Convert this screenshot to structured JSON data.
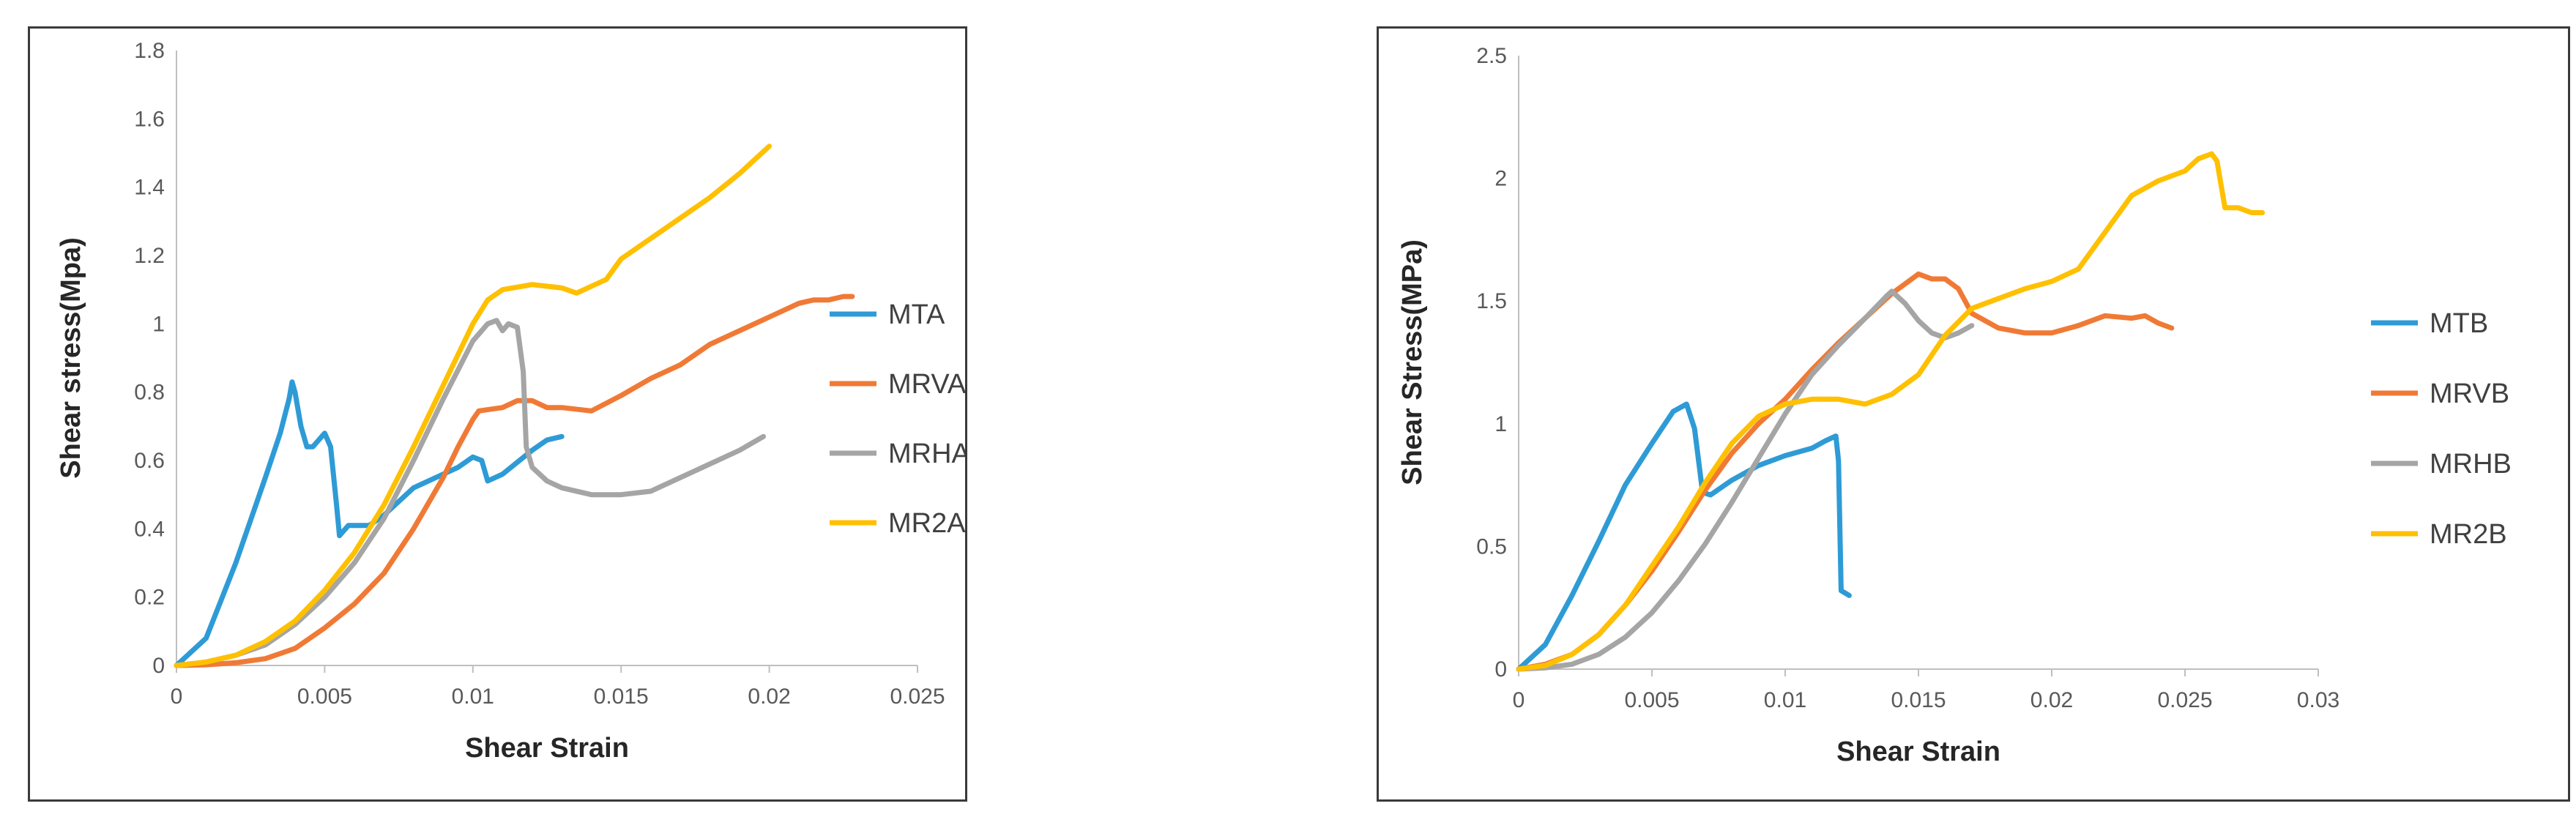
{
  "chart_data": [
    {
      "type": "line",
      "title": "",
      "xlabel": "Shear Strain",
      "ylabel": "Shear stress(Mpa)",
      "xlim": [
        0,
        0.025
      ],
      "ylim": [
        0,
        1.8
      ],
      "xticks": [
        0,
        0.005,
        0.01,
        0.015,
        0.02,
        0.025
      ],
      "xtick_labels": [
        "0",
        "0.005",
        "0.01",
        "0.015",
        "0.02",
        "0.025"
      ],
      "yticks": [
        0,
        0.2,
        0.4,
        0.6,
        0.8,
        1,
        1.2,
        1.4,
        1.6,
        1.8
      ],
      "ytick_labels": [
        "0",
        "0.2",
        "0.4",
        "0.6",
        "0.8",
        "1",
        "1.2",
        "1.4",
        "1.6",
        "1.8"
      ],
      "grid": false,
      "legend_position": "right",
      "series": [
        {
          "name": "MTA",
          "color": "#2E9BD6",
          "points": [
            [
              0,
              0
            ],
            [
              0.001,
              0.08
            ],
            [
              0.002,
              0.3
            ],
            [
              0.003,
              0.55
            ],
            [
              0.0035,
              0.68
            ],
            [
              0.0038,
              0.78
            ],
            [
              0.0039,
              0.83
            ],
            [
              0.004,
              0.8
            ],
            [
              0.0042,
              0.7
            ],
            [
              0.0044,
              0.64
            ],
            [
              0.0046,
              0.64
            ],
            [
              0.0048,
              0.66
            ],
            [
              0.005,
              0.68
            ],
            [
              0.0052,
              0.64
            ],
            [
              0.0054,
              0.47
            ],
            [
              0.0055,
              0.38
            ],
            [
              0.0058,
              0.41
            ],
            [
              0.0065,
              0.41
            ],
            [
              0.007,
              0.44
            ],
            [
              0.008,
              0.52
            ],
            [
              0.009,
              0.56
            ],
            [
              0.0095,
              0.58
            ],
            [
              0.01,
              0.61
            ],
            [
              0.0103,
              0.6
            ],
            [
              0.0105,
              0.54
            ],
            [
              0.011,
              0.56
            ],
            [
              0.012,
              0.63
            ],
            [
              0.0125,
              0.66
            ],
            [
              0.013,
              0.67
            ]
          ]
        },
        {
          "name": "MRVA",
          "color": "#F07A35",
          "points": [
            [
              0,
              0
            ],
            [
              0.001,
              0.002
            ],
            [
              0.002,
              0.008
            ],
            [
              0.003,
              0.02
            ],
            [
              0.004,
              0.05
            ],
            [
              0.005,
              0.11
            ],
            [
              0.006,
              0.18
            ],
            [
              0.007,
              0.27
            ],
            [
              0.008,
              0.4
            ],
            [
              0.009,
              0.55
            ],
            [
              0.0095,
              0.64
            ],
            [
              0.01,
              0.72
            ],
            [
              0.0102,
              0.745
            ],
            [
              0.011,
              0.755
            ],
            [
              0.0115,
              0.775
            ],
            [
              0.012,
              0.775
            ],
            [
              0.0125,
              0.755
            ],
            [
              0.013,
              0.755
            ],
            [
              0.014,
              0.745
            ],
            [
              0.015,
              0.79
            ],
            [
              0.016,
              0.84
            ],
            [
              0.017,
              0.88
            ],
            [
              0.018,
              0.94
            ],
            [
              0.019,
              0.98
            ],
            [
              0.02,
              1.02
            ],
            [
              0.021,
              1.06
            ],
            [
              0.0215,
              1.07
            ],
            [
              0.022,
              1.07
            ],
            [
              0.0225,
              1.08
            ],
            [
              0.0228,
              1.08
            ]
          ]
        },
        {
          "name": "MRHA",
          "color": "#A5A5A5",
          "points": [
            [
              0,
              0
            ],
            [
              0.001,
              0.01
            ],
            [
              0.002,
              0.03
            ],
            [
              0.003,
              0.06
            ],
            [
              0.004,
              0.12
            ],
            [
              0.005,
              0.2
            ],
            [
              0.006,
              0.3
            ],
            [
              0.007,
              0.43
            ],
            [
              0.008,
              0.6
            ],
            [
              0.009,
              0.78
            ],
            [
              0.01,
              0.95
            ],
            [
              0.0105,
              1.0
            ],
            [
              0.0108,
              1.01
            ],
            [
              0.011,
              0.98
            ],
            [
              0.0112,
              1.0
            ],
            [
              0.0115,
              0.99
            ],
            [
              0.0117,
              0.86
            ],
            [
              0.0118,
              0.64
            ],
            [
              0.012,
              0.58
            ],
            [
              0.0125,
              0.54
            ],
            [
              0.013,
              0.52
            ],
            [
              0.014,
              0.5
            ],
            [
              0.015,
              0.5
            ],
            [
              0.016,
              0.51
            ],
            [
              0.017,
              0.55
            ],
            [
              0.018,
              0.59
            ],
            [
              0.019,
              0.63
            ],
            [
              0.0198,
              0.67
            ]
          ]
        },
        {
          "name": "MR2A",
          "color": "#FFC000",
          "points": [
            [
              0,
              0
            ],
            [
              0.001,
              0.01
            ],
            [
              0.002,
              0.03
            ],
            [
              0.003,
              0.07
            ],
            [
              0.004,
              0.13
            ],
            [
              0.005,
              0.22
            ],
            [
              0.006,
              0.33
            ],
            [
              0.007,
              0.47
            ],
            [
              0.008,
              0.64
            ],
            [
              0.009,
              0.82
            ],
            [
              0.01,
              1.0
            ],
            [
              0.0105,
              1.07
            ],
            [
              0.011,
              1.1
            ],
            [
              0.012,
              1.115
            ],
            [
              0.013,
              1.105
            ],
            [
              0.0135,
              1.09
            ],
            [
              0.014,
              1.11
            ],
            [
              0.0145,
              1.13
            ],
            [
              0.015,
              1.19
            ],
            [
              0.016,
              1.25
            ],
            [
              0.017,
              1.31
            ],
            [
              0.018,
              1.37
            ],
            [
              0.019,
              1.44
            ],
            [
              0.02,
              1.52
            ]
          ]
        }
      ]
    },
    {
      "type": "line",
      "title": "",
      "xlabel": "Shear Strain",
      "ylabel": "Shear Stress(MPa)",
      "xlim": [
        0,
        0.03
      ],
      "ylim": [
        0,
        2.5
      ],
      "xticks": [
        0,
        0.005,
        0.01,
        0.015,
        0.02,
        0.025,
        0.03
      ],
      "xtick_labels": [
        "0",
        "0.005",
        "0.01",
        "0.015",
        "0.02",
        "0.025",
        "0.03"
      ],
      "yticks": [
        0,
        0.5,
        1,
        1.5,
        2,
        2.5
      ],
      "ytick_labels": [
        "0",
        "0.5",
        "1",
        "1.5",
        "2",
        "2.5"
      ],
      "grid": false,
      "legend_position": "right",
      "series": [
        {
          "name": "MTB",
          "color": "#2E9BD6",
          "points": [
            [
              0,
              0
            ],
            [
              0.001,
              0.1
            ],
            [
              0.002,
              0.3
            ],
            [
              0.003,
              0.52
            ],
            [
              0.004,
              0.75
            ],
            [
              0.005,
              0.92
            ],
            [
              0.0058,
              1.05
            ],
            [
              0.0063,
              1.08
            ],
            [
              0.0066,
              0.98
            ],
            [
              0.0069,
              0.72
            ],
            [
              0.0072,
              0.71
            ],
            [
              0.008,
              0.77
            ],
            [
              0.009,
              0.83
            ],
            [
              0.01,
              0.87
            ],
            [
              0.011,
              0.9
            ],
            [
              0.0115,
              0.93
            ],
            [
              0.0119,
              0.95
            ],
            [
              0.012,
              0.85
            ],
            [
              0.0121,
              0.32
            ],
            [
              0.0124,
              0.3
            ]
          ]
        },
        {
          "name": "MRVB",
          "color": "#F07A35",
          "points": [
            [
              0,
              0
            ],
            [
              0.001,
              0.02
            ],
            [
              0.002,
              0.06
            ],
            [
              0.003,
              0.14
            ],
            [
              0.004,
              0.26
            ],
            [
              0.005,
              0.4
            ],
            [
              0.006,
              0.56
            ],
            [
              0.007,
              0.73
            ],
            [
              0.008,
              0.88
            ],
            [
              0.009,
              1.0
            ],
            [
              0.01,
              1.1
            ],
            [
              0.011,
              1.22
            ],
            [
              0.012,
              1.33
            ],
            [
              0.013,
              1.43
            ],
            [
              0.014,
              1.53
            ],
            [
              0.0145,
              1.57
            ],
            [
              0.015,
              1.61
            ],
            [
              0.0155,
              1.59
            ],
            [
              0.016,
              1.59
            ],
            [
              0.0165,
              1.55
            ],
            [
              0.017,
              1.45
            ],
            [
              0.018,
              1.39
            ],
            [
              0.019,
              1.37
            ],
            [
              0.02,
              1.37
            ],
            [
              0.021,
              1.4
            ],
            [
              0.022,
              1.44
            ],
            [
              0.023,
              1.43
            ],
            [
              0.0235,
              1.44
            ],
            [
              0.024,
              1.41
            ],
            [
              0.0245,
              1.39
            ]
          ]
        },
        {
          "name": "MRHB",
          "color": "#A5A5A5",
          "points": [
            [
              0,
              0
            ],
            [
              0.001,
              0.005
            ],
            [
              0.002,
              0.02
            ],
            [
              0.003,
              0.06
            ],
            [
              0.004,
              0.13
            ],
            [
              0.005,
              0.23
            ],
            [
              0.006,
              0.36
            ],
            [
              0.007,
              0.51
            ],
            [
              0.008,
              0.68
            ],
            [
              0.009,
              0.86
            ],
            [
              0.01,
              1.04
            ],
            [
              0.011,
              1.2
            ],
            [
              0.012,
              1.32
            ],
            [
              0.013,
              1.43
            ],
            [
              0.0138,
              1.52
            ],
            [
              0.014,
              1.54
            ],
            [
              0.0145,
              1.49
            ],
            [
              0.015,
              1.42
            ],
            [
              0.0155,
              1.37
            ],
            [
              0.016,
              1.35
            ],
            [
              0.0165,
              1.37
            ],
            [
              0.017,
              1.4
            ]
          ]
        },
        {
          "name": "MR2B",
          "color": "#FFC000",
          "points": [
            [
              0,
              0
            ],
            [
              0.001,
              0.015
            ],
            [
              0.002,
              0.06
            ],
            [
              0.003,
              0.14
            ],
            [
              0.004,
              0.26
            ],
            [
              0.005,
              0.42
            ],
            [
              0.006,
              0.58
            ],
            [
              0.007,
              0.76
            ],
            [
              0.008,
              0.92
            ],
            [
              0.009,
              1.03
            ],
            [
              0.01,
              1.08
            ],
            [
              0.011,
              1.1
            ],
            [
              0.012,
              1.1
            ],
            [
              0.013,
              1.08
            ],
            [
              0.014,
              1.12
            ],
            [
              0.015,
              1.2
            ],
            [
              0.016,
              1.36
            ],
            [
              0.017,
              1.47
            ],
            [
              0.018,
              1.51
            ],
            [
              0.019,
              1.55
            ],
            [
              0.02,
              1.58
            ],
            [
              0.021,
              1.63
            ],
            [
              0.022,
              1.78
            ],
            [
              0.023,
              1.93
            ],
            [
              0.024,
              1.99
            ],
            [
              0.025,
              2.03
            ],
            [
              0.0255,
              2.08
            ],
            [
              0.026,
              2.1
            ],
            [
              0.0262,
              2.07
            ],
            [
              0.0265,
              1.88
            ],
            [
              0.027,
              1.88
            ],
            [
              0.0275,
              1.86
            ],
            [
              0.0279,
              1.86
            ]
          ]
        }
      ]
    }
  ]
}
